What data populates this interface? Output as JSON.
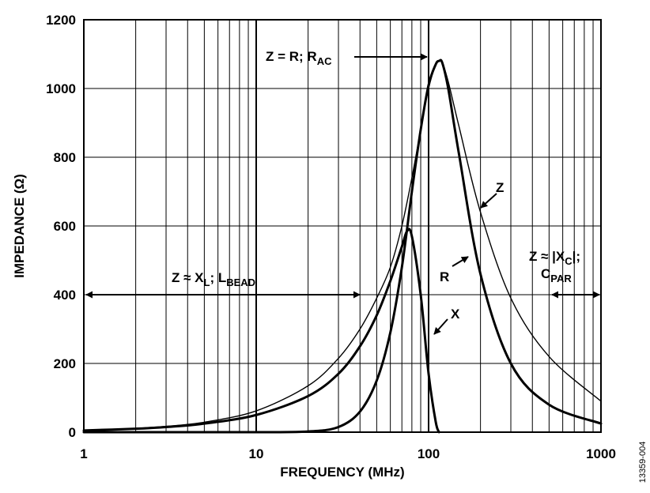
{
  "chart_data": {
    "type": "line",
    "xlabel": "FREQUENCY (MHz)",
    "ylabel": "IMPEDANCE (Ω)",
    "x_scale": "log",
    "xlim": [
      1,
      1000
    ],
    "ylim": [
      0,
      1200
    ],
    "grid": true,
    "x_ticks": [
      1,
      10,
      100,
      1000
    ],
    "x_tick_labels": [
      "1",
      "10",
      "100",
      "1000"
    ],
    "y_ticks": [
      0,
      200,
      400,
      600,
      800,
      1000,
      1200
    ],
    "y_tick_labels": [
      "0",
      "200",
      "400",
      "600",
      "800",
      "1000",
      "1200"
    ],
    "series": [
      {
        "name": "Z",
        "line": "thin",
        "x": [
          1,
          2,
          3,
          5,
          10,
          20,
          30,
          40,
          50,
          60,
          70,
          80,
          90,
          100,
          110,
          115,
          120,
          130,
          150,
          200,
          300,
          500,
          1000
        ],
        "y": [
          5,
          11,
          17,
          29,
          62,
          135,
          215,
          300,
          390,
          480,
          600,
          740,
          880,
          1000,
          1070,
          1080,
          1075,
          1020,
          890,
          640,
          390,
          220,
          90
        ]
      },
      {
        "name": "R",
        "line": "thick",
        "x": [
          1,
          5,
          10,
          20,
          30,
          40,
          50,
          60,
          70,
          80,
          90,
          100,
          110,
          115,
          120,
          130,
          150,
          200,
          300,
          500,
          1000
        ],
        "y": [
          0,
          0,
          0,
          2,
          15,
          60,
          150,
          290,
          480,
          700,
          880,
          1010,
          1070,
          1080,
          1075,
          1000,
          810,
          460,
          200,
          80,
          25
        ]
      },
      {
        "name": "X",
        "line": "thick",
        "x": [
          1,
          2,
          3,
          5,
          10,
          20,
          30,
          40,
          50,
          60,
          70,
          75,
          80,
          90,
          100,
          110,
          115
        ],
        "y": [
          5,
          10,
          15,
          25,
          50,
          105,
          170,
          250,
          340,
          440,
          540,
          585,
          570,
          400,
          170,
          30,
          0
        ]
      }
    ],
    "annotations": {
      "peak": {
        "main": "Z = R; R",
        "sub": "AC"
      },
      "inductive": {
        "main": "Z ≈ X",
        "sub1": "L",
        "mid": "; L",
        "sub2": "BEAD"
      },
      "capacitive_line1": {
        "main": "Z ≈ |X",
        "sub": "C",
        "tail": "|;"
      },
      "capacitive_line2": {
        "main": "C",
        "sub": "PAR"
      },
      "z_label": "Z",
      "r_label": "R",
      "x_label": "X"
    }
  },
  "figure_id": "13359-004"
}
